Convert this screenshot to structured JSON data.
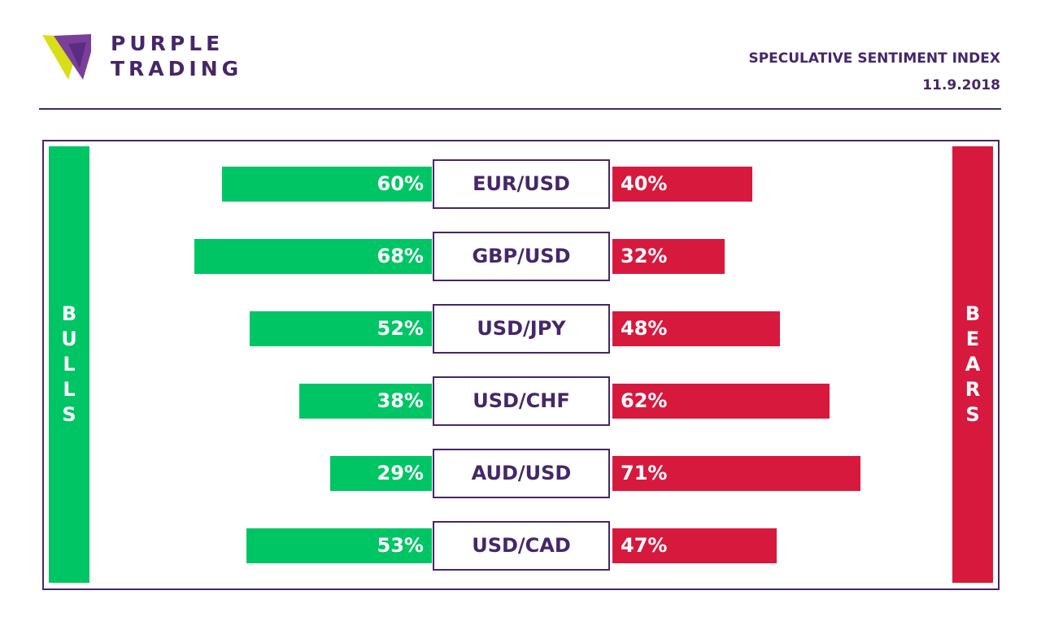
{
  "brand": {
    "line1": "PURPLE",
    "line2": "TRADING",
    "colors": {
      "purple": "#452769",
      "violet": "#7a3f9a",
      "lime": "#d9dd1a"
    }
  },
  "header": {
    "title": "SPECULATIVE SENTIMENT INDEX",
    "date": "11.9.2018"
  },
  "labels": {
    "bulls": "B\nU\nL\nL\nS",
    "bears": "B\nE\nA\nR\nS"
  },
  "colors": {
    "bulls": "#00c565",
    "bears": "#d7193e",
    "frame": "#452769"
  },
  "chart_data": {
    "type": "bar",
    "orientation": "diverging-horizontal",
    "categories": [
      "EUR/USD",
      "GBP/USD",
      "USD/JPY",
      "USD/CHF",
      "AUD/USD",
      "USD/CAD"
    ],
    "series": [
      {
        "values": [
          60,
          68,
          52,
          38,
          29,
          53
        ],
        "labels": [
          "60%",
          "68%",
          "52%",
          "38%",
          "29%",
          "53%"
        ]
      },
      {
        "values": [
          40,
          32,
          48,
          62,
          71,
          47
        ],
        "labels": [
          "40%",
          "32%",
          "48%",
          "62%",
          "71%",
          "47%"
        ]
      }
    ],
    "title": "SPECULATIVE SENTIMENT INDEX",
    "unit": "%"
  }
}
